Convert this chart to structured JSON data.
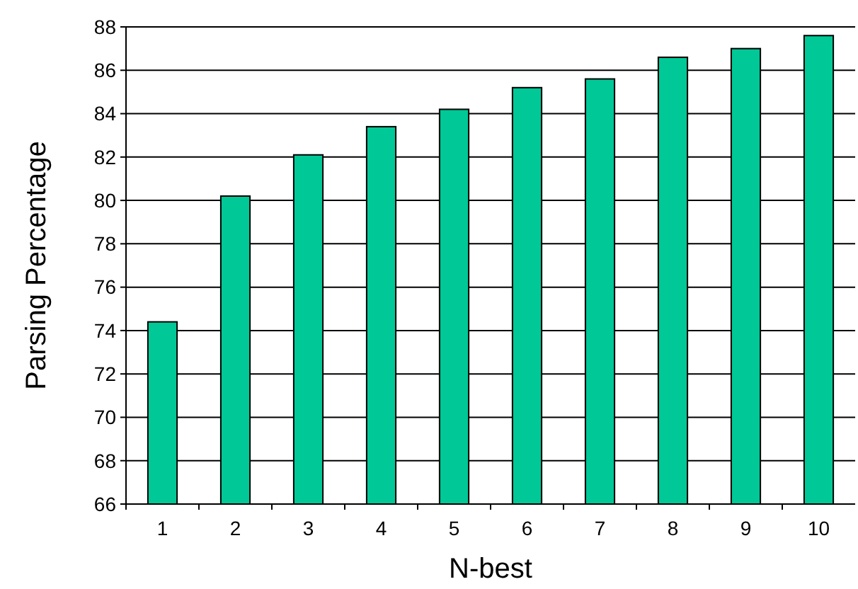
{
  "chart_data": {
    "type": "bar",
    "xlabel": "N-best",
    "ylabel": "Parsing Percentage",
    "categories": [
      "1",
      "2",
      "3",
      "4",
      "5",
      "6",
      "7",
      "8",
      "9",
      "10"
    ],
    "values": [
      74.4,
      80.2,
      82.1,
      83.4,
      84.2,
      85.2,
      85.6,
      86.6,
      87.0,
      87.6
    ],
    "color": "#00c896",
    "ylim": [
      66,
      88
    ],
    "yticks": [
      66,
      68,
      70,
      72,
      74,
      76,
      78,
      80,
      82,
      84,
      86,
      88
    ],
    "grid": "y"
  }
}
